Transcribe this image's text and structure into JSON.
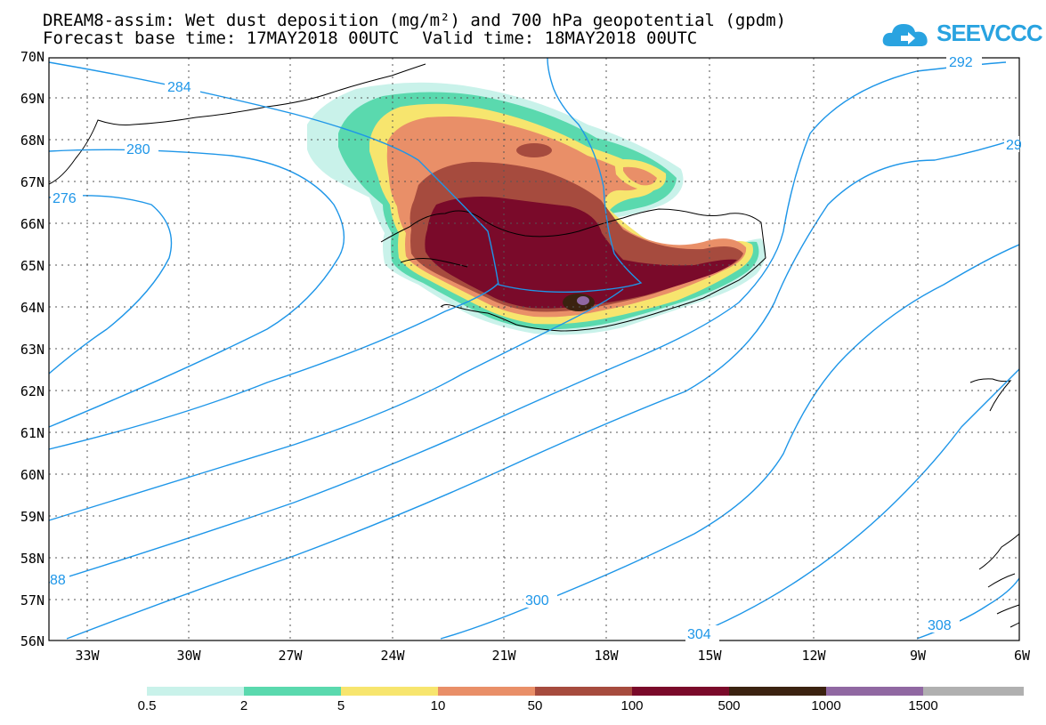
{
  "title": {
    "line1": "DREAM8-assim: Wet dust deposition (mg/m²) and 700 hPa geopotential (gpdm)",
    "base": "Forecast base time: 17MAY2018 00UTC",
    "valid": "Valid time: 18MAY2018 00UTC"
  },
  "logo": {
    "text": "SEEVCCC",
    "icon": "cloud-icon",
    "color": "#29a3e0"
  },
  "map": {
    "lat_labels": [
      "70N",
      "69N",
      "68N",
      "67N",
      "66N",
      "65N",
      "64N",
      "63N",
      "62N",
      "61N",
      "60N",
      "59N",
      "58N",
      "57N",
      "56N"
    ],
    "lon_labels": [
      "33W",
      "30W",
      "27W",
      "24W",
      "21W",
      "18W",
      "15W",
      "12W",
      "9W",
      "6W"
    ],
    "contour_labels": [
      "284",
      "280",
      "276",
      "292",
      "29",
      "300",
      "304",
      "308",
      "88"
    ],
    "contour_color": "#1e96e8"
  },
  "legend": {
    "labels": [
      "0.5",
      "2",
      "5",
      "10",
      "50",
      "100",
      "500",
      "1000",
      "1500"
    ],
    "colors": [
      "#c9f2ea",
      "#5ad9ae",
      "#f7e56e",
      "#e98f68",
      "#a64b3e",
      "#7a0a2a",
      "#3b2210",
      "#9068a2",
      "#b0b0b0"
    ]
  }
}
